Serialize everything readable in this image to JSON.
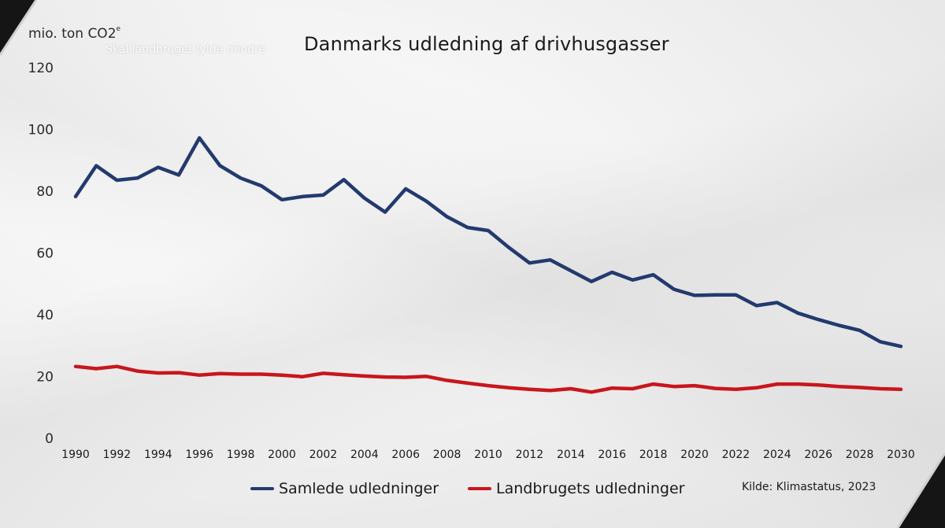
{
  "chart_data": {
    "type": "line",
    "title": "Danmarks udledning af drivhusgasser",
    "ylabel_prefix": "mio. ton CO2",
    "ylabel_superscript": "e",
    "background_text": "Skal landbruget fylde mindre",
    "source": "Kilde: Klimastatus, 2023",
    "ylim": [
      0,
      120
    ],
    "yticks": [
      0,
      20,
      40,
      60,
      80,
      100,
      120
    ],
    "xlim": [
      1990,
      2030
    ],
    "xticks": [
      1990,
      1992,
      1994,
      1996,
      1998,
      2000,
      2002,
      2004,
      2006,
      2008,
      2010,
      2012,
      2014,
      2016,
      2018,
      2020,
      2022,
      2024,
      2026,
      2028,
      2030
    ],
    "grid": false,
    "legend_position": "bottom",
    "x": [
      1990,
      1991,
      1992,
      1993,
      1994,
      1995,
      1996,
      1997,
      1998,
      1999,
      2000,
      2001,
      2002,
      2003,
      2004,
      2005,
      2006,
      2007,
      2008,
      2009,
      2010,
      2011,
      2012,
      2013,
      2014,
      2015,
      2016,
      2017,
      2018,
      2019,
      2020,
      2021,
      2022,
      2023,
      2024,
      2025,
      2026,
      2027,
      2028,
      2029,
      2030
    ],
    "series": [
      {
        "name": "Samlede udledninger",
        "color": "#233a6e",
        "values": [
          78,
          88,
          83.3,
          84,
          87.5,
          85,
          97,
          88,
          84,
          81.5,
          77,
          78,
          78.5,
          83.5,
          77.5,
          73,
          80.5,
          76.5,
          71.5,
          68,
          67,
          61.5,
          56.5,
          57.5,
          54,
          50.5,
          53.5,
          51,
          52.7,
          48,
          46,
          46.2,
          46.2,
          42.7,
          43.7,
          40.3,
          38.2,
          36.3,
          34.7,
          31,
          29.5
        ]
      },
      {
        "name": "Landbrugets udledninger",
        "color": "#c8161d",
        "values": [
          23,
          22.3,
          23,
          21.5,
          20.9,
          21,
          20.2,
          20.7,
          20.5,
          20.5,
          20.2,
          19.7,
          20.8,
          20.3,
          19.9,
          19.6,
          19.5,
          19.8,
          18.5,
          17.6,
          16.8,
          16.1,
          15.6,
          15.2,
          15.8,
          14.7,
          16,
          15.8,
          17.3,
          16.5,
          16.8,
          15.9,
          15.6,
          16.1,
          17.3,
          17.3,
          17,
          16.5,
          16.2,
          15.8,
          15.6
        ]
      }
    ]
  }
}
